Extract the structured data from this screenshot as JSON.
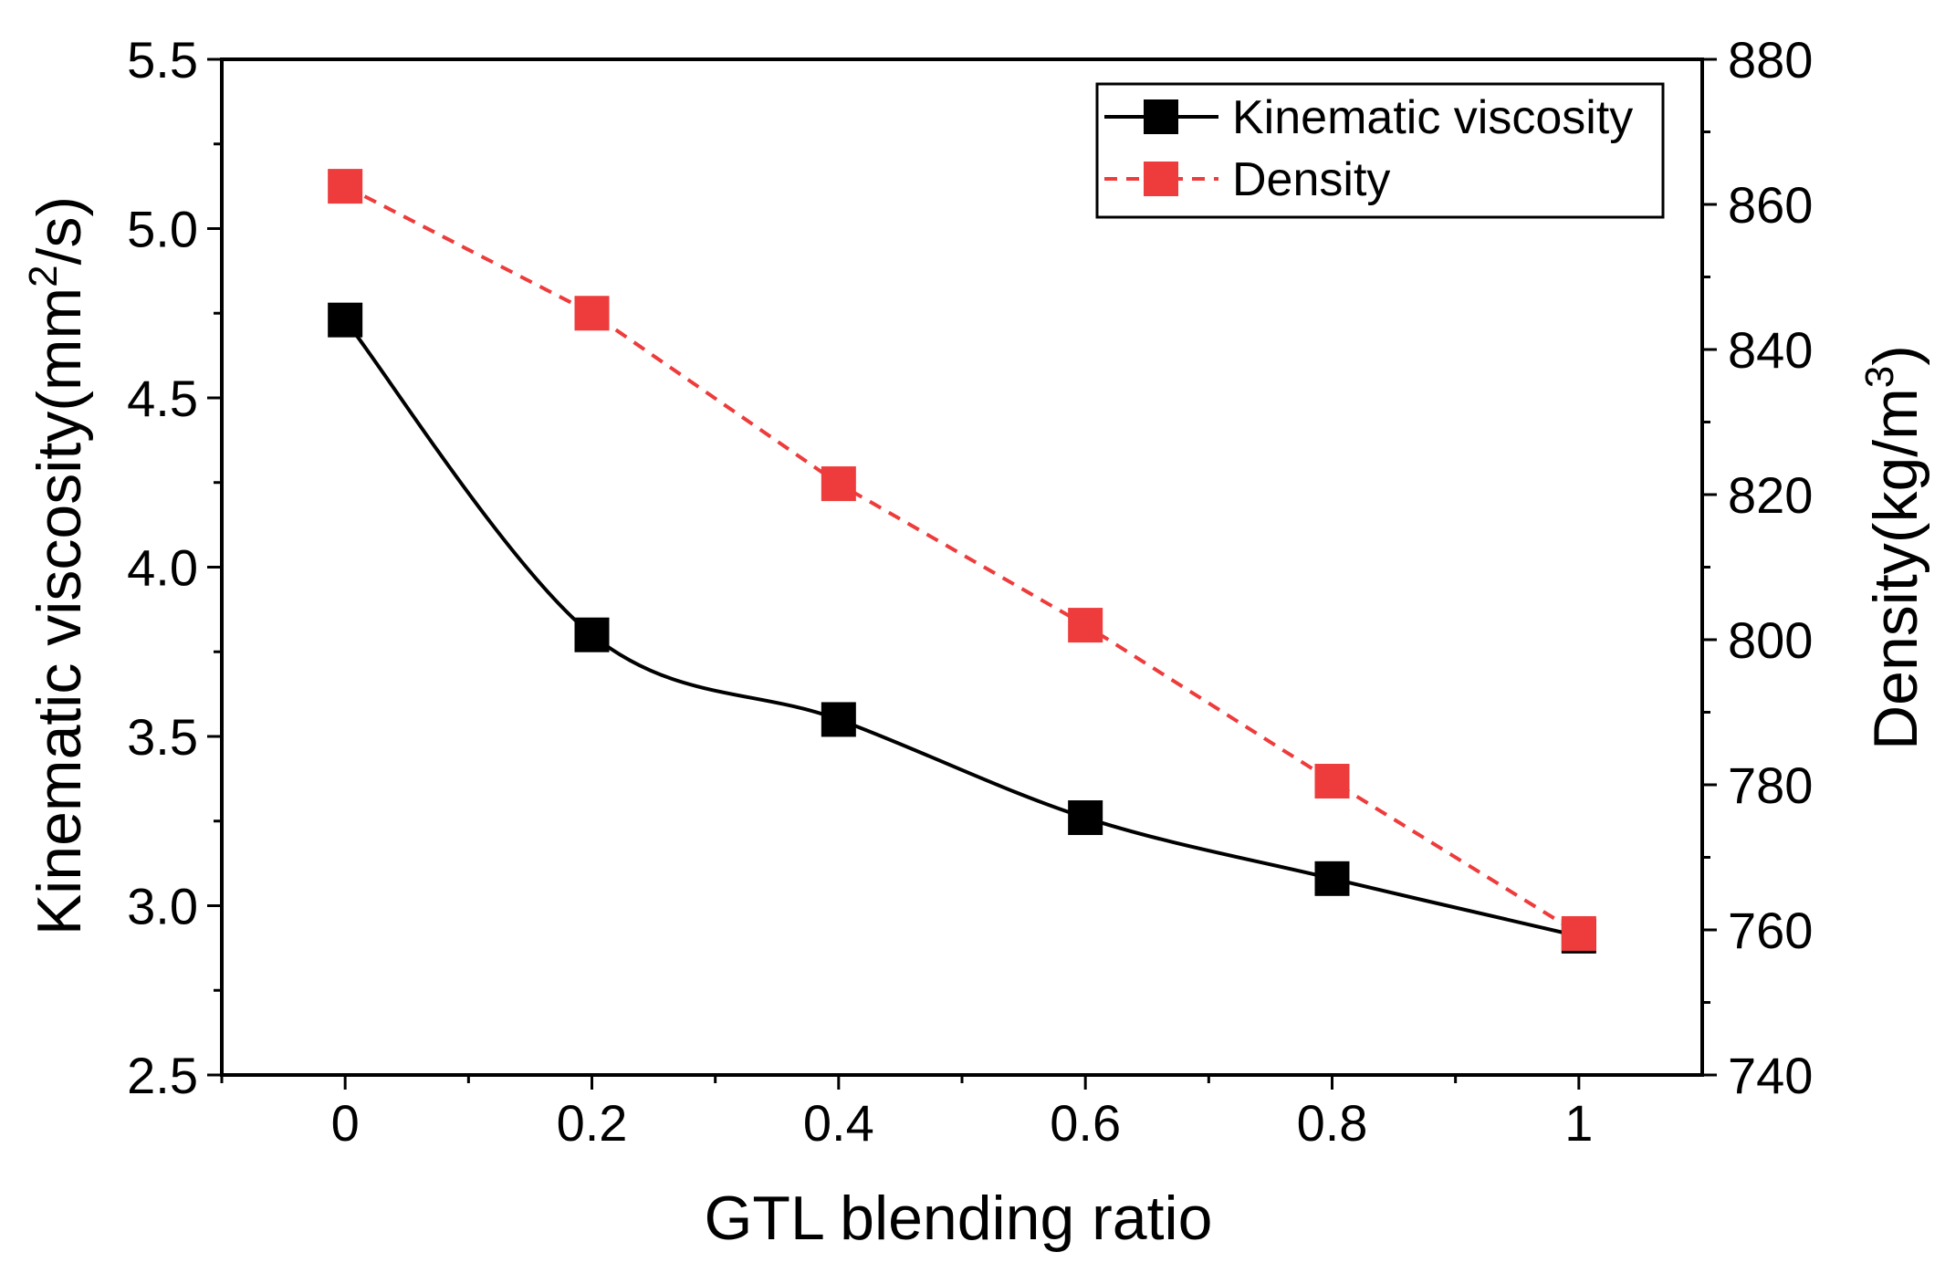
{
  "chart_data": {
    "type": "line",
    "x": [
      0,
      0.2,
      0.4,
      0.6,
      0.8,
      1
    ],
    "x_tick_labels": [
      "0",
      "0.2",
      "0.4",
      "0.6",
      "0.8",
      "1"
    ],
    "xlabel": "GTL blending ratio",
    "xlim": [
      -0.1,
      1.1
    ],
    "y_left": {
      "label_main": "Kinematic viscosity(mm",
      "label_sup": "2",
      "label_tail": "/s)",
      "range": [
        2.5,
        5.5
      ],
      "tick_labels": [
        "2.5",
        "3.0",
        "3.5",
        "4.0",
        "4.5",
        "5.0",
        "5.5"
      ]
    },
    "y_right": {
      "label_main": "Density(kg/m",
      "label_sup": "3",
      "label_tail": ")",
      "range": [
        740,
        880
      ],
      "tick_labels": [
        "740",
        "760",
        "780",
        "800",
        "820",
        "840",
        "860",
        "880"
      ]
    },
    "series": [
      {
        "name": "Kinematic viscosity",
        "axis": "left",
        "color": "#000000",
        "style": "solid-smooth",
        "values": [
          4.73,
          3.8,
          3.55,
          3.26,
          3.08,
          2.91
        ]
      },
      {
        "name": "Density",
        "axis": "right",
        "color": "#ee3b3b",
        "style": "dashed",
        "values": [
          862.5,
          845,
          821.5,
          802,
          780.5,
          759.5
        ]
      }
    ],
    "legend_position": "top-right"
  }
}
